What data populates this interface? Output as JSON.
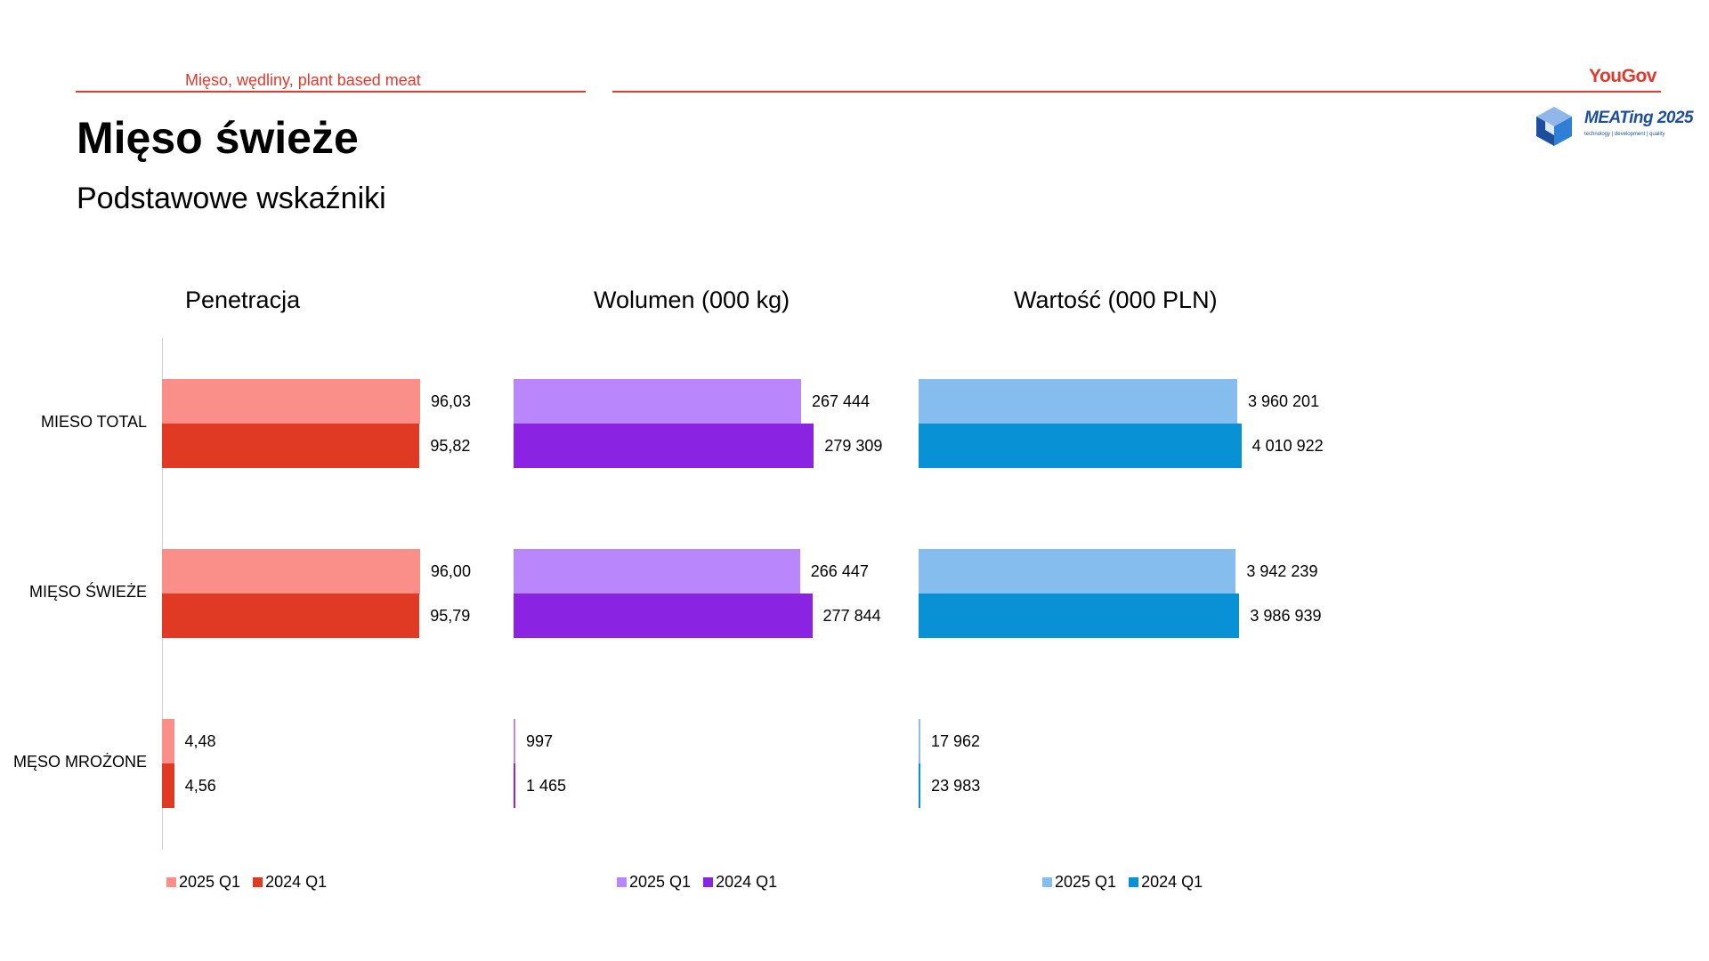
{
  "header": {
    "section": "Mięso, wędliny, plant based meat",
    "brand": "YouGov",
    "logo_text": "MEATing 2025",
    "logo_sub": "technology | development | quality"
  },
  "page": {
    "title": "Mięso świeże",
    "subtitle": "Podstawowe wskaźniki"
  },
  "colors": {
    "accent": "#e03a2f",
    "pen_2025": "#fa8f89",
    "pen_2024": "#e03a24",
    "vol_2025": "#ba86fb",
    "vol_2024": "#8b23e3",
    "val_2025": "#84bdee",
    "val_2024": "#0892d5"
  },
  "chart_data": [
    {
      "type": "bar",
      "orientation": "horizontal",
      "title": "Penetracja",
      "categories": [
        "MIESO TOTAL",
        "MIĘSO ŚWIEŻE",
        "MĘSO MROŻONE"
      ],
      "series": [
        {
          "name": "2025 Q1",
          "values": [
            96.03,
            96.0,
            4.48
          ],
          "labels": [
            "96,03",
            "96,00",
            "4,48"
          ],
          "color": "#fa8f89"
        },
        {
          "name": "2024 Q1",
          "values": [
            95.82,
            95.79,
            4.56
          ],
          "labels": [
            "95,82",
            "95,79",
            "4,56"
          ],
          "color": "#e03a24"
        }
      ],
      "legend": "bottom"
    },
    {
      "type": "bar",
      "orientation": "horizontal",
      "title": "Wolumen (000 kg)",
      "categories": [
        "MIESO TOTAL",
        "MIĘSO ŚWIEŻE",
        "MĘSO MROŻONE"
      ],
      "series": [
        {
          "name": "2025 Q1",
          "values": [
            267444,
            266447,
            997
          ],
          "labels": [
            "267 444",
            "266 447",
            "997"
          ],
          "color": "#ba86fb"
        },
        {
          "name": "2024 Q1",
          "values": [
            279309,
            277844,
            1465
          ],
          "labels": [
            "279 309",
            "277 844",
            "1 465"
          ],
          "color": "#8b23e3"
        }
      ],
      "legend": "bottom"
    },
    {
      "type": "bar",
      "orientation": "horizontal",
      "title": "Wartość (000 PLN)",
      "categories": [
        "MIESO TOTAL",
        "MIĘSO ŚWIEŻE",
        "MĘSO MROŻONE"
      ],
      "series": [
        {
          "name": "2025 Q1",
          "values": [
            3960201,
            3942239,
            17962
          ],
          "labels": [
            "3 960 201",
            "3 942 239",
            "17 962"
          ],
          "color": "#84bdee"
        },
        {
          "name": "2024 Q1",
          "values": [
            4010922,
            3986939,
            23983
          ],
          "labels": [
            "4 010 922",
            "3 986 939",
            "23 983"
          ],
          "color": "#0892d5"
        }
      ],
      "legend": "bottom"
    }
  ]
}
